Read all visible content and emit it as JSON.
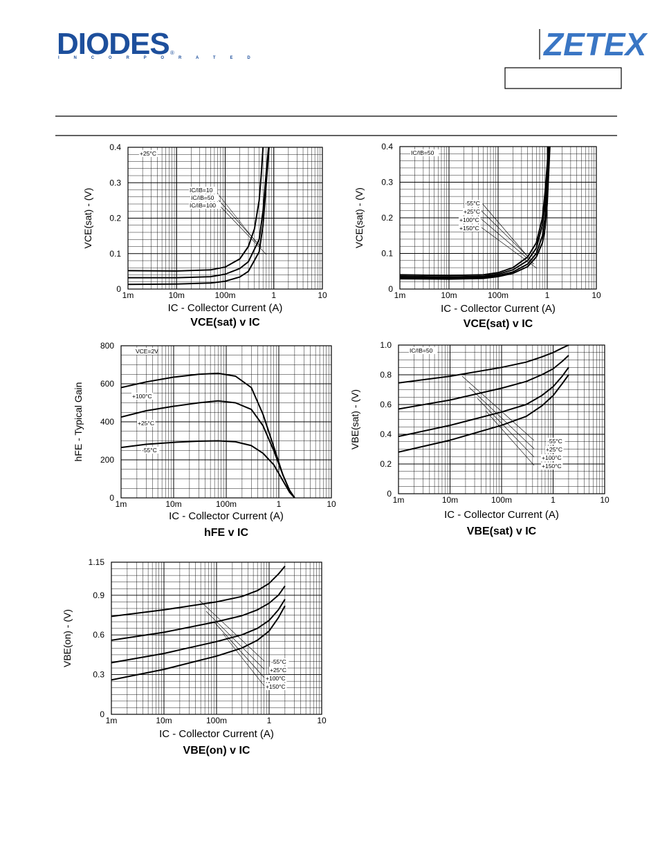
{
  "header": {
    "brand_left": "DIODES",
    "brand_left_registered": "®",
    "brand_left_sub": "I N C O R P O R A T E D",
    "brand_right": "ZETEX",
    "brand_color": "#1d4f9c",
    "brand_right_color": "#3a76c4"
  },
  "chart_data": [
    {
      "type": "line",
      "title": "VCE(sat) v IC",
      "xlabel": "IC - Collector Current (A)",
      "ylabel": "VCE(sat) - (V)",
      "xscale": "log",
      "xlim": [
        0.001,
        10
      ],
      "ylim": [
        0,
        0.4
      ],
      "xticks": [
        "1m",
        "10m",
        "100m",
        "1",
        "10"
      ],
      "yticks": [
        "0",
        "0.1",
        "0.2",
        "0.3",
        "0.4"
      ],
      "annotations": [
        "+25°C",
        "IC/IB=10",
        "IC/IB=50",
        "IC/IB=100"
      ],
      "series": [
        {
          "name": "IC/IB=10",
          "x": [
            0.001,
            0.01,
            0.05,
            0.1,
            0.2,
            0.3,
            0.5,
            0.6,
            0.7,
            0.8
          ],
          "y": [
            0.013,
            0.014,
            0.017,
            0.022,
            0.034,
            0.05,
            0.105,
            0.18,
            0.3,
            0.4
          ]
        },
        {
          "name": "IC/IB=50",
          "x": [
            0.001,
            0.01,
            0.05,
            0.1,
            0.2,
            0.3,
            0.5,
            0.6,
            0.7,
            0.78
          ],
          "y": [
            0.032,
            0.032,
            0.035,
            0.042,
            0.058,
            0.077,
            0.14,
            0.22,
            0.33,
            0.4
          ]
        },
        {
          "name": "IC/IB=100",
          "x": [
            0.001,
            0.01,
            0.05,
            0.1,
            0.2,
            0.3,
            0.4,
            0.5,
            0.55,
            0.6
          ],
          "y": [
            0.052,
            0.051,
            0.054,
            0.062,
            0.085,
            0.12,
            0.17,
            0.25,
            0.32,
            0.4
          ]
        }
      ]
    },
    {
      "type": "line",
      "title": "VCE(sat) v IC",
      "xlabel": "IC - Collector Current (A)",
      "ylabel": "VCE(sat) - (V)",
      "xscale": "log",
      "xlim": [
        0.001,
        10
      ],
      "ylim": [
        0,
        0.4
      ],
      "xticks": [
        "1m",
        "10m",
        "100m",
        "1",
        "10"
      ],
      "yticks": [
        "0",
        "0.1",
        "0.2",
        "0.3",
        "0.4"
      ],
      "annotations": [
        "IC/IB=50",
        "-55°C",
        "+25°C",
        "+100°C",
        "+150°C"
      ],
      "series": [
        {
          "name": "-55°C",
          "x": [
            0.001,
            0.01,
            0.05,
            0.1,
            0.2,
            0.4,
            0.6,
            0.8,
            0.9,
            1.0,
            1.05
          ],
          "y": [
            0.04,
            0.038,
            0.04,
            0.046,
            0.06,
            0.09,
            0.13,
            0.2,
            0.27,
            0.35,
            0.4
          ]
        },
        {
          "name": "+25°C",
          "x": [
            0.001,
            0.01,
            0.05,
            0.1,
            0.2,
            0.4,
            0.6,
            0.8,
            0.9,
            1.0,
            1.07
          ],
          "y": [
            0.036,
            0.034,
            0.036,
            0.042,
            0.054,
            0.08,
            0.115,
            0.18,
            0.24,
            0.32,
            0.4
          ]
        },
        {
          "name": "+100°C",
          "x": [
            0.001,
            0.01,
            0.05,
            0.1,
            0.2,
            0.4,
            0.6,
            0.8,
            0.9,
            1.0,
            1.1
          ],
          "y": [
            0.032,
            0.031,
            0.033,
            0.038,
            0.048,
            0.07,
            0.1,
            0.15,
            0.2,
            0.28,
            0.4
          ]
        },
        {
          "name": "+150°C",
          "x": [
            0.001,
            0.01,
            0.05,
            0.1,
            0.2,
            0.4,
            0.6,
            0.8,
            0.9,
            1.0,
            1.13
          ],
          "y": [
            0.029,
            0.028,
            0.03,
            0.035,
            0.044,
            0.063,
            0.09,
            0.13,
            0.17,
            0.24,
            0.4
          ]
        }
      ]
    },
    {
      "type": "line",
      "title": "hFE v IC",
      "xlabel": "IC - Collector Current (A)",
      "ylabel": "hFE - Typical Gain",
      "xscale": "log",
      "xlim": [
        0.001,
        10
      ],
      "ylim": [
        0,
        800
      ],
      "xticks": [
        "1m",
        "10m",
        "100m",
        "1",
        "10"
      ],
      "yticks": [
        "0",
        "200",
        "400",
        "600",
        "800"
      ],
      "annotations": [
        "VCE=2V",
        "+100°C",
        "+25°C",
        "-55°C"
      ],
      "series": [
        {
          "name": "+100°C",
          "x": [
            0.001,
            0.003,
            0.01,
            0.03,
            0.07,
            0.15,
            0.3,
            0.5,
            0.8,
            1.2,
            1.6,
            2.0
          ],
          "y": [
            580,
            610,
            635,
            650,
            655,
            640,
            580,
            440,
            270,
            120,
            40,
            0
          ]
        },
        {
          "name": "+25°C",
          "x": [
            0.001,
            0.003,
            0.01,
            0.03,
            0.07,
            0.15,
            0.3,
            0.5,
            0.8,
            1.2,
            1.6,
            2.0
          ],
          "y": [
            425,
            458,
            482,
            500,
            510,
            500,
            465,
            380,
            250,
            120,
            40,
            0
          ]
        },
        {
          "name": "-55°C",
          "x": [
            0.001,
            0.003,
            0.01,
            0.03,
            0.07,
            0.15,
            0.3,
            0.5,
            0.8,
            1.2,
            1.6,
            2.0
          ],
          "y": [
            265,
            282,
            292,
            298,
            300,
            295,
            275,
            235,
            175,
            90,
            30,
            0
          ]
        }
      ]
    },
    {
      "type": "line",
      "title": "VBE(sat) v IC",
      "xlabel": "IC - Collector Current (A)",
      "ylabel": "VBE(sat) - (V)",
      "xscale": "log",
      "xlim": [
        0.001,
        10
      ],
      "ylim": [
        0,
        1.0
      ],
      "xticks": [
        "1m",
        "10m",
        "100m",
        "1",
        "10"
      ],
      "yticks": [
        "0",
        "0.2",
        "0.4",
        "0.6",
        "0.8",
        "1.0"
      ],
      "annotations": [
        "IC/IB=50",
        "-55°C",
        "+25°C",
        "+100°C",
        "+150°C"
      ],
      "series": [
        {
          "name": "-55°C",
          "x": [
            0.001,
            0.01,
            0.1,
            0.3,
            0.6,
            1,
            1.5,
            2
          ],
          "y": [
            0.745,
            0.79,
            0.85,
            0.885,
            0.92,
            0.95,
            0.98,
            1.0
          ]
        },
        {
          "name": "+25°C",
          "x": [
            0.001,
            0.01,
            0.1,
            0.3,
            0.6,
            1,
            1.5,
            2
          ],
          "y": [
            0.57,
            0.63,
            0.71,
            0.755,
            0.8,
            0.84,
            0.89,
            0.93
          ]
        },
        {
          "name": "+100°C",
          "x": [
            0.001,
            0.01,
            0.1,
            0.3,
            0.6,
            1,
            1.5,
            2
          ],
          "y": [
            0.385,
            0.46,
            0.55,
            0.6,
            0.66,
            0.72,
            0.79,
            0.85
          ]
        },
        {
          "name": "+150°C",
          "x": [
            0.001,
            0.01,
            0.1,
            0.3,
            0.6,
            1,
            1.5,
            2
          ],
          "y": [
            0.28,
            0.36,
            0.46,
            0.52,
            0.59,
            0.66,
            0.74,
            0.8
          ]
        }
      ]
    },
    {
      "type": "line",
      "title": "VBE(on) v IC",
      "xlabel": "IC - Collector Current (A)",
      "ylabel": "VBE(on) - (V)",
      "xscale": "log",
      "xlim": [
        0.001,
        10
      ],
      "ylim": [
        0,
        1.15
      ],
      "xticks": [
        "1m",
        "10m",
        "100m",
        "1",
        "10"
      ],
      "yticks": [
        "0",
        "0.3",
        "0.6",
        "0.9",
        "1.15"
      ],
      "yticks_values": [
        0,
        0.3,
        0.6,
        0.9,
        1.15
      ],
      "annotations": [
        "-55°C",
        "+25°C",
        "+100°C",
        "+150°C"
      ],
      "series": [
        {
          "name": "-55°C",
          "x": [
            0.001,
            0.01,
            0.1,
            0.3,
            0.6,
            1,
            1.5,
            2
          ],
          "y": [
            0.74,
            0.79,
            0.85,
            0.89,
            0.935,
            0.99,
            1.06,
            1.12
          ]
        },
        {
          "name": "+25°C",
          "x": [
            0.001,
            0.01,
            0.1,
            0.3,
            0.6,
            1,
            1.5,
            2
          ],
          "y": [
            0.56,
            0.62,
            0.7,
            0.745,
            0.79,
            0.84,
            0.9,
            0.97
          ]
        },
        {
          "name": "+100°C",
          "x": [
            0.001,
            0.01,
            0.1,
            0.3,
            0.6,
            1,
            1.5,
            2
          ],
          "y": [
            0.39,
            0.46,
            0.55,
            0.6,
            0.65,
            0.71,
            0.79,
            0.87
          ]
        },
        {
          "name": "+150°C",
          "x": [
            0.001,
            0.01,
            0.1,
            0.3,
            0.6,
            1,
            1.5,
            2
          ],
          "y": [
            0.26,
            0.34,
            0.44,
            0.5,
            0.56,
            0.63,
            0.73,
            0.82
          ]
        }
      ]
    }
  ]
}
